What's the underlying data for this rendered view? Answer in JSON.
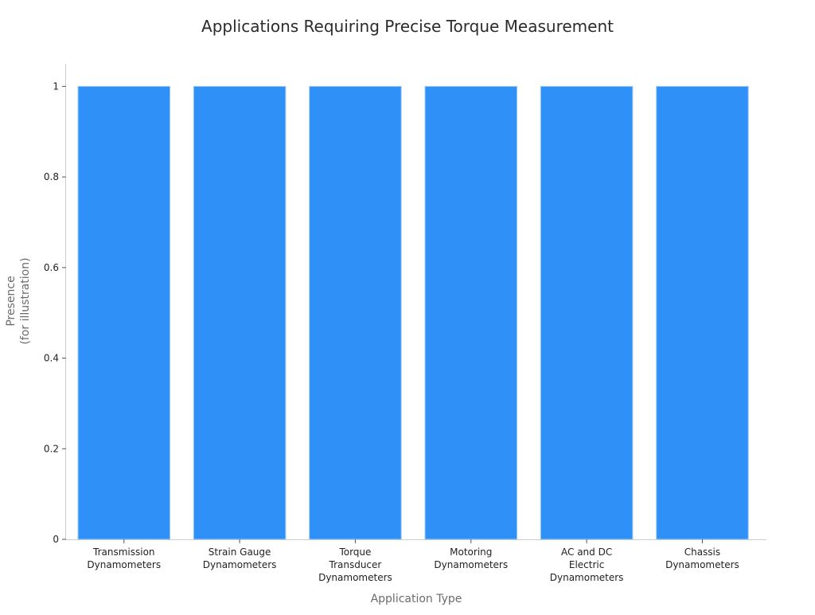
{
  "chart_data": {
    "type": "bar",
    "title": "Applications Requiring Precise Torque Measurement",
    "xlabel": "Application Type",
    "ylabel": [
      "Presence",
      "(for illustration)"
    ],
    "categories": [
      [
        "Transmission",
        "Dynamometers"
      ],
      [
        "Strain Gauge",
        "Dynamometers"
      ],
      [
        "Torque",
        "Transducer",
        "Dynamometers"
      ],
      [
        "Motoring",
        "Dynamometers"
      ],
      [
        "AC and DC",
        "Electric",
        "Dynamometers"
      ],
      [
        "Chassis",
        "Dynamometers"
      ]
    ],
    "values": [
      1,
      1,
      1,
      1,
      1,
      1
    ],
    "ylim": [
      0,
      1.05
    ],
    "yticks": [
      0,
      0.2,
      0.4,
      0.6,
      0.8,
      1
    ],
    "ytick_labels": [
      "0",
      "0.2",
      "0.4",
      "0.6",
      "0.8",
      "1"
    ],
    "bar_color": "#2f91f7",
    "grid": false,
    "legend": "none"
  }
}
